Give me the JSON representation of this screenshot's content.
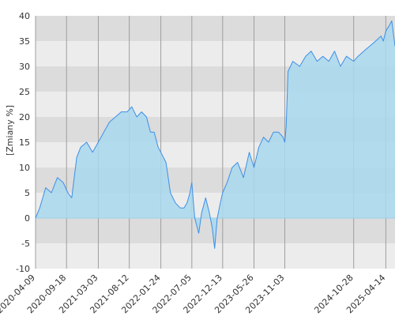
{
  "chart_data": {
    "type": "area",
    "ylabel": "[Zmiany %]",
    "ylim": [
      -10,
      40
    ],
    "xlim": [
      "2020-04-09",
      "2025-06-01"
    ],
    "y_ticks": [
      -10,
      -5,
      0,
      5,
      10,
      15,
      20,
      25,
      30,
      35,
      40
    ],
    "x_ticks": [
      "2020-04-09",
      "2020-09-18",
      "2021-03-03",
      "2021-08-12",
      "2022-01-24",
      "2022-07-05",
      "2022-12-13",
      "2023-05-26",
      "2023-11-03",
      "2024-10-28",
      "2025-04-14"
    ],
    "grid": true,
    "colors": {
      "band_dark": "#dcdcdc",
      "band_light": "#ececec",
      "line": "#3c8fe6",
      "fill": "#a9d8ee",
      "zero_line": "#9ecfe8",
      "grid_line": "#9e9e9e"
    },
    "series": [
      {
        "x": [
          "2020-04-09",
          "2020-05-01",
          "2020-06-01",
          "2020-07-01",
          "2020-08-01",
          "2020-09-01",
          "2020-09-25",
          "2020-10-15",
          "2020-11-10",
          "2020-12-01",
          "2021-01-01",
          "2021-02-01",
          "2021-03-03",
          "2021-04-01",
          "2021-05-01",
          "2021-06-01",
          "2021-07-01",
          "2021-08-01",
          "2021-08-25",
          "2021-09-20",
          "2021-10-15",
          "2021-11-10",
          "2021-12-01",
          "2021-12-20",
          "2022-01-10",
          "2022-01-24",
          "2022-02-20",
          "2022-03-15",
          "2022-04-10",
          "2022-05-05",
          "2022-05-25",
          "2022-06-10",
          "2022-06-25",
          "2022-07-05",
          "2022-07-20",
          "2022-08-10",
          "2022-08-25",
          "2022-09-15",
          "2022-10-05",
          "2022-10-20",
          "2022-11-01",
          "2022-11-15",
          "2022-12-01",
          "2022-12-13",
          "2023-01-05",
          "2023-02-01",
          "2023-03-01",
          "2023-04-01",
          "2023-05-01",
          "2023-05-26",
          "2023-06-20",
          "2023-07-15",
          "2023-08-10",
          "2023-09-05",
          "2023-10-01",
          "2023-10-25",
          "2023-11-03",
          "2023-11-10",
          "2023-11-20",
          "2023-12-15",
          "2024-01-20",
          "2024-02-20",
          "2024-03-20",
          "2024-04-20",
          "2024-05-20",
          "2024-06-20",
          "2024-07-20",
          "2024-08-20",
          "2024-09-20",
          "2024-10-28",
          "2024-11-20",
          "2024-12-20",
          "2025-01-20",
          "2025-02-20",
          "2025-03-20",
          "2025-04-01",
          "2025-04-14",
          "2025-05-01",
          "2025-05-15",
          "2025-06-01"
        ],
        "y": [
          0,
          2,
          6,
          5,
          8,
          7,
          5,
          4,
          12,
          14,
          15,
          13,
          15,
          17,
          19,
          20,
          21,
          21,
          22,
          20,
          21,
          20,
          17,
          17,
          14,
          13,
          11,
          5,
          3,
          2,
          2,
          3,
          5,
          7,
          0,
          -3,
          1,
          4,
          1,
          -2,
          -6,
          0,
          3,
          5,
          7,
          10,
          11,
          8,
          13,
          10,
          14,
          16,
          15,
          17,
          17,
          16,
          15,
          18,
          29,
          31,
          30,
          32,
          33,
          31,
          32,
          31,
          33,
          30,
          32,
          31,
          32,
          33,
          34,
          35,
          36,
          35,
          37,
          38,
          39,
          34
        ]
      }
    ]
  }
}
